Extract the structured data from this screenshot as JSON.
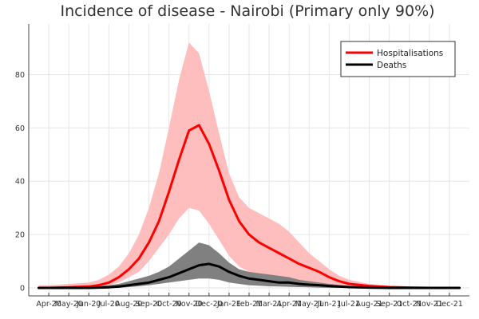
{
  "chart_data": {
    "type": "line",
    "title": "Incidence of disease - Nairobi (Primary only 90%)",
    "xlabel": "",
    "ylabel": "",
    "x_tick_labels": [
      "Apr-20",
      "May-20",
      "Jun-20",
      "Jul-20",
      "Aug-20",
      "Sep-20",
      "Oct-20",
      "Nov-20",
      "Dec-20",
      "Jan-21",
      "Feb-21",
      "Mar-21",
      "Apr-21",
      "May-21",
      "Jun-21",
      "Jul-21",
      "Aug-21",
      "Sep-21",
      "Oct-21",
      "Nov-21",
      "Dec-21"
    ],
    "y_ticks": [
      0,
      20,
      40,
      60,
      80
    ],
    "xlim": [
      -1,
      21
    ],
    "ylim": [
      -3,
      99
    ],
    "grid": true,
    "legend_position": "top-right",
    "series": [
      {
        "name": "Hospitalisations",
        "color": "#ff0000",
        "band_color": "#ffbebe",
        "x": [
          -0.5,
          0,
          1,
          2,
          2.5,
          3,
          3.5,
          4,
          4.5,
          5,
          5.5,
          6,
          6.5,
          7,
          7.5,
          8,
          8.5,
          9,
          9.5,
          10,
          10.5,
          11,
          11.5,
          12,
          12.5,
          13,
          13.5,
          14,
          14.5,
          15,
          16,
          17,
          18,
          19,
          20,
          20.5
        ],
        "values": [
          0,
          0,
          0.2,
          0.5,
          1,
          2,
          4,
          7,
          11,
          17,
          25,
          36,
          48,
          59,
          61,
          54,
          44,
          33,
          25,
          20,
          17,
          15,
          13,
          11,
          9,
          7.5,
          6,
          4,
          2.5,
          1.5,
          0.7,
          0.3,
          0.1,
          0,
          0,
          0
        ],
        "lower": [
          0,
          0,
          0,
          0.2,
          0.5,
          1,
          2,
          4,
          6,
          10,
          15,
          20,
          26,
          30,
          29,
          24,
          18,
          12,
          8,
          6,
          5,
          4,
          3.5,
          3,
          2.5,
          2,
          1.5,
          1,
          0.6,
          0.3,
          0.1,
          0,
          0,
          0,
          0,
          0
        ],
        "upper": [
          1,
          1,
          1.5,
          2,
          3,
          5,
          8,
          13,
          20,
          30,
          43,
          60,
          78,
          92,
          88,
          74,
          58,
          43,
          34,
          30,
          28,
          26,
          24,
          21,
          17,
          13,
          10,
          7,
          4.5,
          3,
          1.5,
          0.7,
          0.3,
          0.1,
          0,
          0
        ]
      },
      {
        "name": "Deaths",
        "color": "#000000",
        "band_color": "#808080",
        "x": [
          -0.5,
          0,
          1,
          2,
          3,
          3.5,
          4,
          4.5,
          5,
          5.5,
          6,
          6.5,
          7,
          7.5,
          8,
          8.5,
          9,
          9.5,
          10,
          10.5,
          11,
          11.5,
          12,
          12.5,
          13,
          13.5,
          14,
          15,
          16,
          17,
          18,
          19,
          20,
          20.5
        ],
        "values": [
          0,
          0,
          0,
          0,
          0.2,
          0.5,
          1,
          1.5,
          2,
          3,
          4,
          5.5,
          7,
          8.5,
          9,
          8,
          6,
          4.5,
          3.5,
          3,
          2.5,
          2,
          2,
          1.5,
          1.2,
          1,
          0.7,
          0.3,
          0.1,
          0,
          0,
          0,
          0,
          0
        ],
        "lower": [
          0,
          0,
          0,
          0,
          0,
          0,
          0.3,
          0.6,
          1,
          1.5,
          2,
          2.5,
          3,
          3.5,
          3.5,
          3,
          2,
          1.5,
          1,
          0.8,
          0.6,
          0.5,
          0.4,
          0.3,
          0.2,
          0.1,
          0,
          0,
          0,
          0,
          0,
          0,
          0,
          0
        ],
        "upper": [
          0.2,
          0.2,
          0.3,
          0.5,
          1,
          1.5,
          2.5,
          3.5,
          4.5,
          6,
          8,
          11,
          14,
          17,
          16,
          13,
          9.5,
          7,
          6,
          5.5,
          5,
          4.5,
          4,
          3,
          2.5,
          2,
          1.5,
          0.7,
          0.3,
          0.1,
          0,
          0,
          0,
          0
        ]
      }
    ]
  }
}
